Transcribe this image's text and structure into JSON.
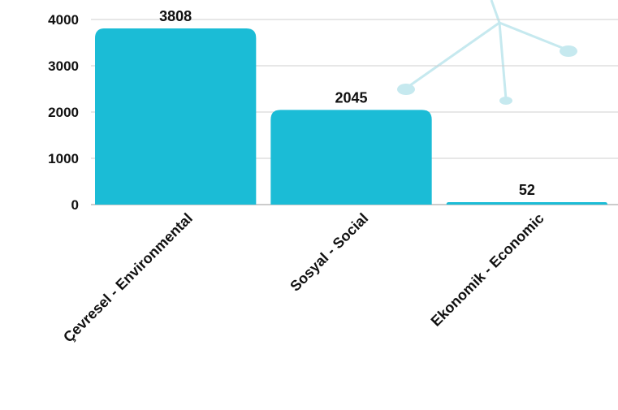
{
  "chart_data": {
    "type": "bar",
    "categories": [
      "Çevresel - Environmental",
      "Sosyal - Social",
      "Ekonomik - Economic"
    ],
    "values": [
      3808,
      2045,
      52
    ],
    "data_labels": [
      "3808",
      "2045",
      "52"
    ],
    "y_ticks": [
      "0",
      "1000",
      "2000",
      "3000",
      "4000"
    ],
    "ylim": [
      0,
      4000
    ],
    "grid": true,
    "title": "",
    "xlabel": "",
    "ylabel": ""
  },
  "colors": {
    "bar": "#1bbcd6",
    "gridline": "#cfcfcf",
    "decoration": "#c6e9ef"
  },
  "decoration_icon": "wind-turbine-icon"
}
